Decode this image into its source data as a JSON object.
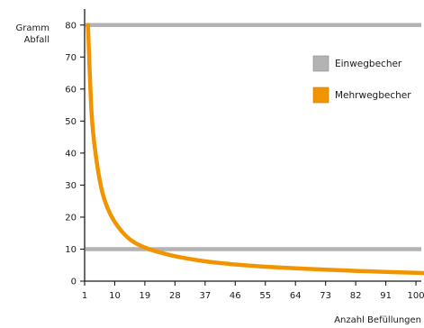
{
  "chart_data": {
    "type": "line",
    "ylabel": [
      "Gramm",
      "Abfall"
    ],
    "xlabel": "Anzahl Befüllungen",
    "xlim": [
      1,
      105
    ],
    "ylim": [
      0,
      85
    ],
    "x_ticks": [
      1,
      10,
      19,
      28,
      37,
      46,
      55,
      64,
      73,
      82,
      91,
      100
    ],
    "y_ticks": [
      0,
      10,
      20,
      30,
      40,
      50,
      60,
      70,
      80
    ],
    "legend_position": "right",
    "series": [
      {
        "name": "Einwegbecher",
        "color": "#b3b3b3",
        "lines": [
          {
            "x": [
              1,
              105
            ],
            "y": [
              80,
              80
            ]
          },
          {
            "x": [
              1,
              105
            ],
            "y": [
              10,
              10
            ]
          }
        ]
      },
      {
        "name": "Mehrwegbecher",
        "color": "#f29400",
        "x": [
          2,
          3,
          4,
          6,
          8,
          10,
          13,
          16,
          19,
          22,
          28,
          37,
          46,
          55,
          64,
          73,
          82,
          91,
          100,
          105
        ],
        "y": [
          80,
          54,
          42,
          29,
          22.5,
          18.5,
          14.5,
          12,
          10.5,
          9.4,
          7.8,
          6.2,
          5.2,
          4.5,
          4.0,
          3.6,
          3.2,
          2.9,
          2.6,
          2.5
        ]
      }
    ]
  }
}
